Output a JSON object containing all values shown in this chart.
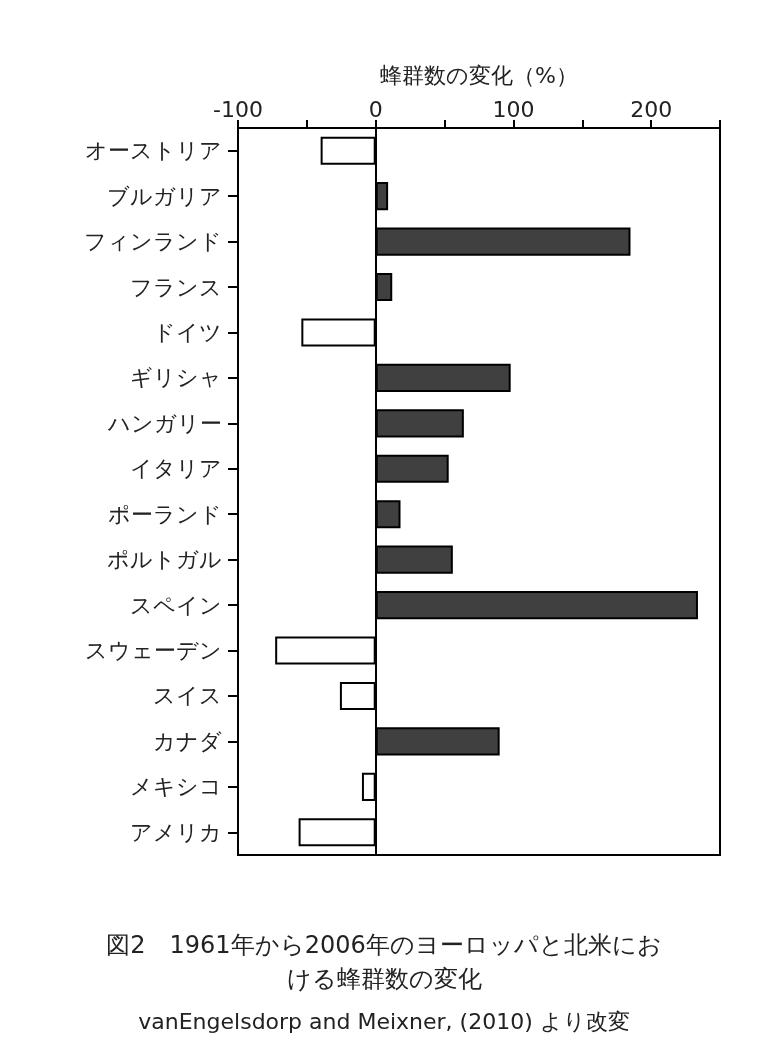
{
  "chart_data": {
    "type": "bar",
    "orientation": "horizontal",
    "title": "図2　1961年から2006年のヨーロッパと北米における蜂群数の変化",
    "xlabel": "蜂群数の変化（%）",
    "annotations": [
      "vanEngelsdorp and Meixner, (2010) より改変"
    ],
    "categories": [
      "オーストリア",
      "ブルガリア",
      "フィンランド",
      "フランス",
      "ドイツ",
      "ギリシャ",
      "ハンガリー",
      "イタリア",
      "ポーランド",
      "ポルトガル",
      "スペイン",
      "スウェーデン",
      "スイス",
      "カナダ",
      "メキシコ",
      "アメリカ"
    ],
    "values": [
      -40,
      9,
      185,
      12,
      -54,
      98,
      64,
      53,
      18,
      56,
      234,
      -73,
      -26,
      90,
      -10,
      -56
    ],
    "colors": [
      "#ffffff",
      "#404040",
      "#404040",
      "#404040",
      "#ffffff",
      "#404040",
      "#404040",
      "#404040",
      "#404040",
      "#404040",
      "#404040",
      "#ffffff",
      "#ffffff",
      "#404040",
      "#ffffff",
      "#ffffff"
    ],
    "xlim": [
      -100,
      250
    ],
    "xticks": [
      -100,
      {
        "value": -50,
        "label": null
      },
      0,
      {
        "value": 50,
        "label": null
      },
      100,
      {
        "value": 150,
        "label": null
      },
      200,
      {
        "value": 250,
        "label": null
      }
    ],
    "data_labels": false
  }
}
